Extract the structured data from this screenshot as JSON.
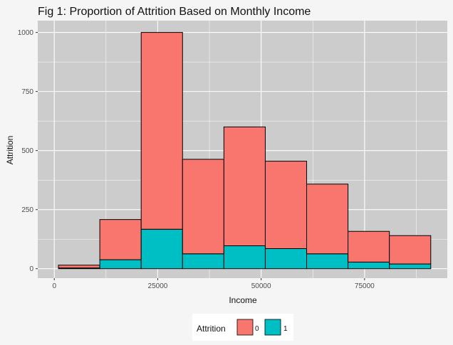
{
  "chart_data": {
    "type": "bar",
    "title": "Fig 1: Proportion of Attrition Based on Monthly Income",
    "xlabel": "Income",
    "ylabel": "Attrition",
    "xlim": [
      -4000,
      95000
    ],
    "ylim": [
      -40,
      1050
    ],
    "x_ticks": [
      0,
      25000,
      50000,
      75000
    ],
    "x_tick_labels": [
      "0",
      "25000",
      "50000",
      "75000"
    ],
    "y_ticks": [
      0,
      250,
      500,
      750,
      1000
    ],
    "y_tick_labels": [
      "0",
      "250",
      "500",
      "750",
      "1000"
    ],
    "bins": [
      {
        "x0": 1000,
        "x1": 11000
      },
      {
        "x0": 11000,
        "x1": 21000
      },
      {
        "x0": 21000,
        "x1": 31000
      },
      {
        "x0": 31000,
        "x1": 41000
      },
      {
        "x0": 41000,
        "x1": 51000
      },
      {
        "x0": 51000,
        "x1": 61000
      },
      {
        "x0": 61000,
        "x1": 71000
      },
      {
        "x0": 71000,
        "x1": 81000
      },
      {
        "x0": 81000,
        "x1": 91000
      }
    ],
    "series": [
      {
        "name": "1",
        "color": "#00bfc4",
        "values": [
          3,
          38,
          167,
          63,
          97,
          85,
          63,
          28,
          20
        ]
      },
      {
        "name": "0",
        "color": "#f8766d",
        "values": [
          12,
          170,
          833,
          400,
          503,
          370,
          295,
          130,
          120
        ]
      }
    ],
    "stacked": true,
    "grid": true,
    "legend": {
      "title": "Attrition",
      "placement": "bottom",
      "entries": [
        {
          "label": "0",
          "color": "#f8766d"
        },
        {
          "label": "1",
          "color": "#00bfc4"
        }
      ]
    }
  }
}
